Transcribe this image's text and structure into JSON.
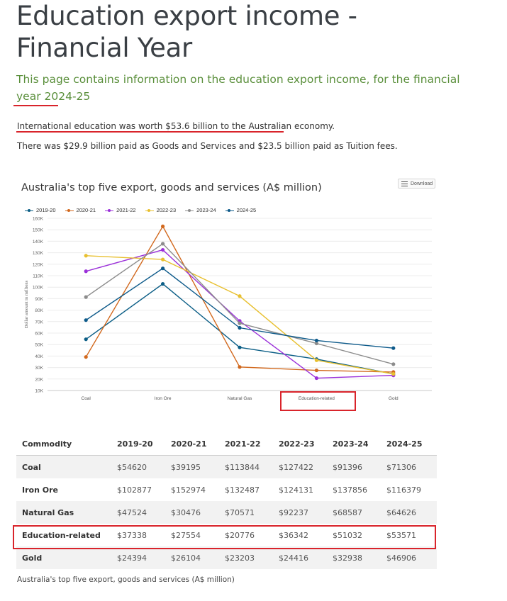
{
  "page": {
    "title": "Education export income - Financial Year",
    "lead": "This page contains information on the education export income, for the financial year 2024-25",
    "paragraph1": "International education was worth $53.6 billion to the Australian economy.",
    "paragraph2": "There was $29.9 billion paid as Goods and Services and $23.5 billion paid as Tuition fees.",
    "download_label": "Download",
    "caption": "Australia's top five export, goods and services (A$ million)"
  },
  "colors": {
    "accent_green": "#5a8f3b",
    "highlight_red": "#d9242b"
  },
  "chart_data": {
    "type": "line",
    "title": "Australia's top five export, goods and services (A$ million)",
    "ylabel": "Dollar amount in millions",
    "xlabel": "",
    "categories": [
      "Coal",
      "Iron Ore",
      "Natural Gas",
      "Education-related",
      "Gold"
    ],
    "ylim": [
      10000,
      160000
    ],
    "yticks": [
      "10K",
      "20K",
      "30K",
      "40K",
      "50K",
      "60K",
      "70K",
      "80K",
      "90K",
      "100K",
      "110K",
      "120K",
      "130K",
      "140K",
      "150K",
      "160K"
    ],
    "grid": true,
    "legend_position": "top-left",
    "series": [
      {
        "name": "2019-20",
        "color": "#0b5e86",
        "values": [
          54620,
          102877,
          47524,
          37338,
          24394
        ]
      },
      {
        "name": "2020-21",
        "color": "#d2691e",
        "values": [
          39195,
          152974,
          30476,
          27554,
          26104
        ]
      },
      {
        "name": "2021-22",
        "color": "#9b30d9",
        "values": [
          113844,
          132487,
          70571,
          20776,
          23203
        ]
      },
      {
        "name": "2022-23",
        "color": "#e8c030",
        "values": [
          127422,
          124131,
          92237,
          36342,
          24416
        ]
      },
      {
        "name": "2023-24",
        "color": "#8c8c8c",
        "values": [
          91396,
          137856,
          68587,
          51032,
          32938
        ]
      },
      {
        "name": "2024-25",
        "color": "#0d5a8a",
        "values": [
          71306,
          116379,
          64626,
          53571,
          46906
        ]
      }
    ]
  },
  "table": {
    "headers": [
      "Commodity",
      "2019-20",
      "2020-21",
      "2021-22",
      "2022-23",
      "2023-24",
      "2024-25"
    ],
    "rows": [
      [
        "Coal",
        "$54620",
        "$39195",
        "$113844",
        "$127422",
        "$91396",
        "$71306"
      ],
      [
        "Iron Ore",
        "$102877",
        "$152974",
        "$132487",
        "$124131",
        "$137856",
        "$116379"
      ],
      [
        "Natural Gas",
        "$47524",
        "$30476",
        "$70571",
        "$92237",
        "$68587",
        "$64626"
      ],
      [
        "Education-related",
        "$37338",
        "$27554",
        "$20776",
        "$36342",
        "$51032",
        "$53571"
      ],
      [
        "Gold",
        "$24394",
        "$26104",
        "$23203",
        "$24416",
        "$32938",
        "$46906"
      ]
    ]
  }
}
